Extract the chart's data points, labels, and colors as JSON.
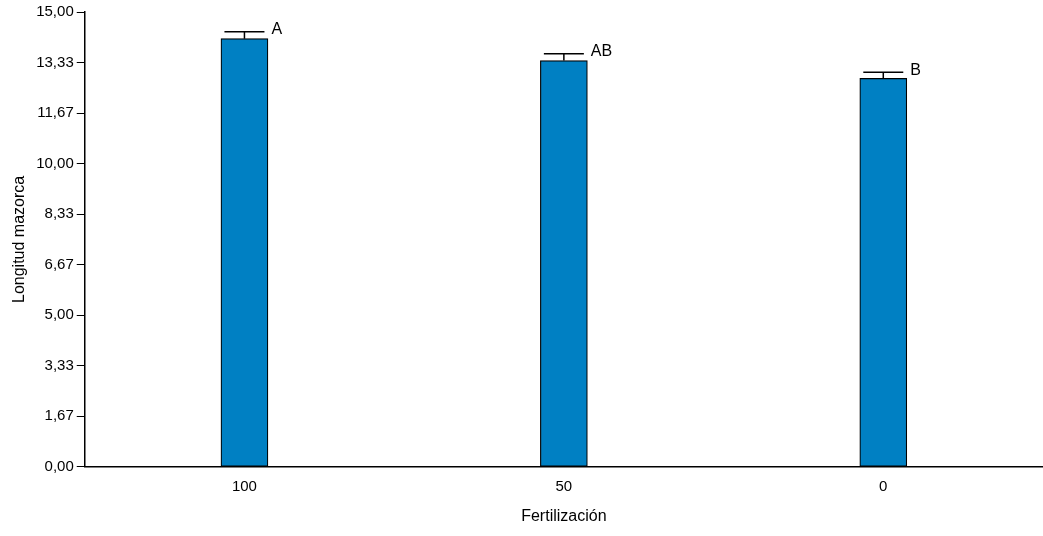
{
  "chart_data": {
    "type": "bar",
    "xlabel": "Fertilización",
    "ylabel": "Longitud mazorca",
    "categories": [
      "100",
      "50",
      "0"
    ],
    "values": [
      14.12,
      13.4,
      12.81
    ],
    "errors": [
      0.23,
      0.22,
      0.2
    ],
    "color": "#0080c3",
    "ylim": [
      0,
      15
    ],
    "yticks": [
      {
        "value": 0,
        "label": "0,00"
      },
      {
        "value": 1.667,
        "label": "1,67"
      },
      {
        "value": 3.333,
        "label": "3,33"
      },
      {
        "value": 5,
        "label": "5,00"
      },
      {
        "value": 6.667,
        "label": "6,67"
      },
      {
        "value": 8.333,
        "label": "8,33"
      },
      {
        "value": 10,
        "label": "10,00"
      },
      {
        "value": 11.667,
        "label": "11,67"
      },
      {
        "value": 13.333,
        "label": "13,33"
      },
      {
        "value": 15,
        "label": "15,00"
      }
    ],
    "annotations": [
      "A",
      "AB",
      "B"
    ],
    "grid": false,
    "legend": false
  }
}
